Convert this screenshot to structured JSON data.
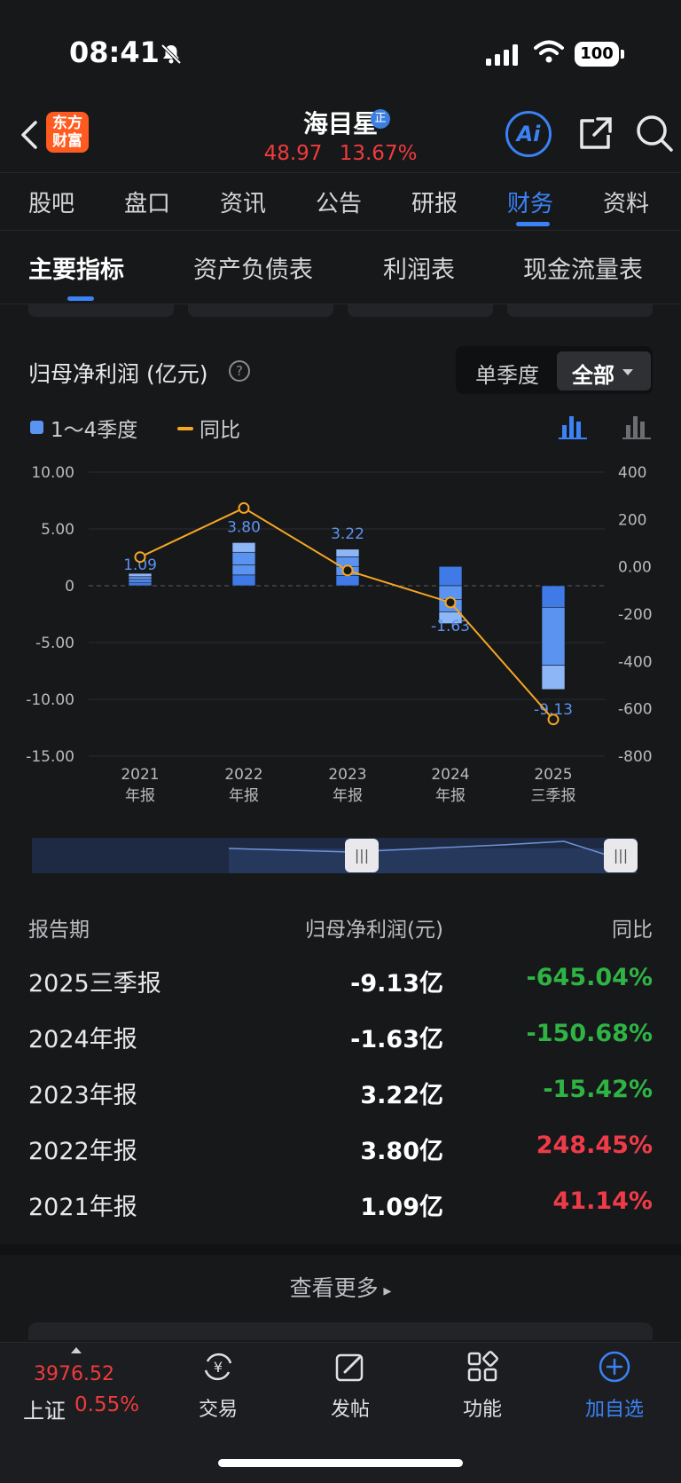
{
  "status": {
    "time": "08:41",
    "battery": "100"
  },
  "header": {
    "logo_line1": "东方",
    "logo_line2": "财富",
    "stock_name": "海目星",
    "stock_badge": "正",
    "price": "48.97",
    "change_pct": "13.67%"
  },
  "tabs_primary": [
    "股吧",
    "盘口",
    "资讯",
    "公告",
    "研报",
    "财务",
    "资料"
  ],
  "tabs_secondary": [
    "主要指标",
    "资产负债表",
    "利润表",
    "现金流量表"
  ],
  "section": {
    "title": "归母净利润 (亿元)",
    "toggle_single": "单季度",
    "toggle_all": "全部",
    "legend_bars": "1～4季度",
    "legend_line": "同比"
  },
  "chart_data": {
    "type": "bar",
    "categories": [
      [
        "2021",
        "年报"
      ],
      [
        "2022",
        "年报"
      ],
      [
        "2023",
        "年报"
      ],
      [
        "2024",
        "年报"
      ],
      [
        "2025",
        "三季报"
      ]
    ],
    "bar_values": [
      1.09,
      3.8,
      3.22,
      -1.63,
      -9.13
    ],
    "bar_labels": [
      "1.09",
      "3.80",
      "3.22",
      "-1.63",
      "-9.13"
    ],
    "quarter_segments": [
      [
        0.3,
        0.25,
        0.25,
        0.29
      ],
      [
        0.95,
        0.9,
        1.1,
        0.85
      ],
      [
        0.9,
        0.8,
        0.85,
        0.67
      ],
      [
        1.7,
        -1.2,
        -1.1,
        -1.03
      ],
      [
        -1.9,
        -5.1,
        -2.13
      ]
    ],
    "yoy": [
      41.14,
      248.45,
      -15.42,
      -150.68,
      -645.04
    ],
    "y_left": {
      "ticks": [
        "10.00",
        "5.00",
        "0",
        "-5.00",
        "-10.00",
        "-15.00"
      ],
      "range": [
        -15,
        10
      ]
    },
    "y_right": {
      "ticks": [
        "400",
        "200",
        "0.00",
        "-200",
        "-400",
        "-600",
        "-800"
      ],
      "range": [
        -800,
        400
      ]
    },
    "colors": {
      "bar_dark": "#3f7ae6",
      "bar_mid": "#5b93f0",
      "bar_light": "#8db6f7",
      "line": "#f5a623"
    }
  },
  "table": {
    "headers": [
      "报告期",
      "归母净利润(元)",
      "同比"
    ],
    "rows": [
      {
        "period": "2025三季报",
        "value": "-9.13亿",
        "yoy": "-645.04%",
        "sign": "neg"
      },
      {
        "period": "2024年报",
        "value": "-1.63亿",
        "yoy": "-150.68%",
        "sign": "neg"
      },
      {
        "period": "2023年报",
        "value": "3.22亿",
        "yoy": "-15.42%",
        "sign": "neg"
      },
      {
        "period": "2022年报",
        "value": "3.80亿",
        "yoy": "248.45%",
        "sign": "pos"
      },
      {
        "period": "2021年报",
        "value": "1.09亿",
        "yoy": "41.14%",
        "sign": "pos"
      }
    ]
  },
  "more_label": "查看更多",
  "bottom_bar": {
    "index_value": "3976.52",
    "index_name": "上证",
    "index_pct": "0.55%",
    "items": [
      "交易",
      "发帖",
      "功能",
      "加自选"
    ]
  }
}
